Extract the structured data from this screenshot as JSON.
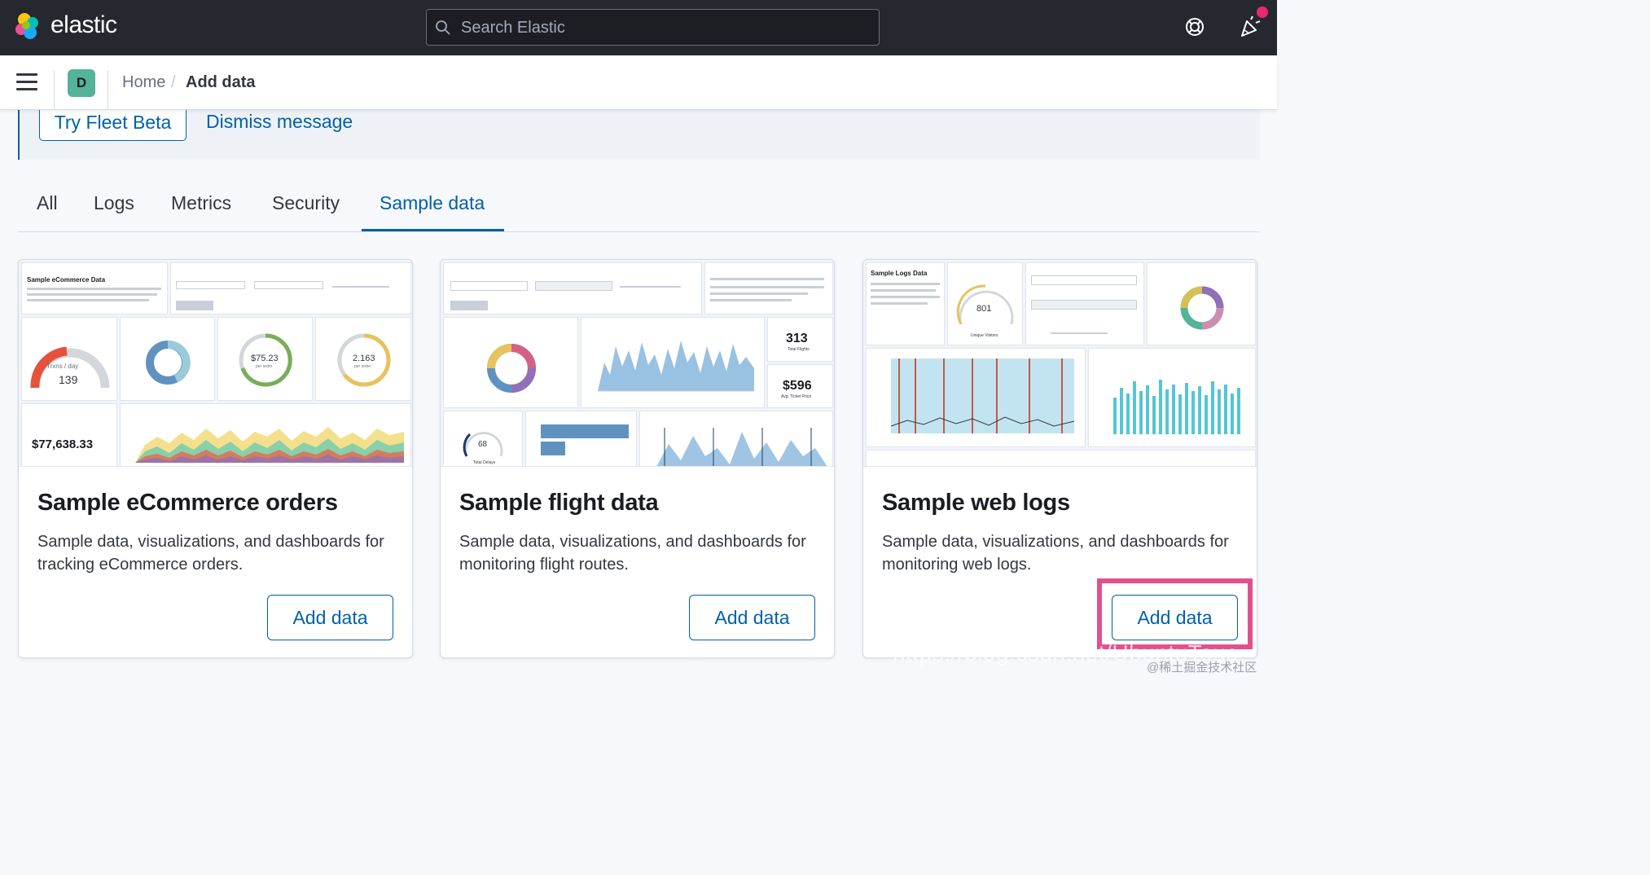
{
  "header": {
    "brand": "elastic",
    "search_placeholder": "Search Elastic",
    "help_icon": "help-icon",
    "news_icon": "newsfeed-icon"
  },
  "breadcrumbs": {
    "space_initial": "D",
    "home": "Home",
    "separator": "/",
    "current": "Add data"
  },
  "callout": {
    "fleet_button": "Try Fleet Beta",
    "dismiss_link": "Dismiss message"
  },
  "tabs": [
    {
      "label": "All",
      "active": false
    },
    {
      "label": "Logs",
      "active": false
    },
    {
      "label": "Metrics",
      "active": false
    },
    {
      "label": "Security",
      "active": false
    },
    {
      "label": "Sample data",
      "active": true
    }
  ],
  "cards": [
    {
      "title": "Sample eCommerce orders",
      "description": "Sample data, visualizations, and dashboards for tracking eCommerce orders.",
      "button": "Add data",
      "thumb": {
        "markdown_title": "Sample eCommerce Data",
        "gauge_label": "Trxns / day",
        "gauge_value": "139",
        "avg_sales": "$75.23",
        "avg_sales_sub": "per order",
        "avg_sold": "2.163",
        "avg_sold_sub": "per order",
        "total_revenue": "$77,638.33"
      }
    },
    {
      "title": "Sample flight data",
      "description": "Sample data, visualizations, and dashboards for monitoring flight routes.",
      "button": "Add data",
      "thumb": {
        "total_flights": "313",
        "total_flights_label": "Total Flights",
        "avg_ticket": "$596",
        "avg_ticket_label": "Avg. Ticket Price",
        "delays": "68",
        "delays_label": "Total Delays"
      }
    },
    {
      "title": "Sample web logs",
      "description": "Sample data, visualizations, and dashboards for monitoring web logs.",
      "button": "Add data",
      "thumb": {
        "markdown_title": "Sample Logs Data",
        "visitors": "801",
        "visitors_label": "Unique Visitors"
      }
    }
  ],
  "watermark": "@稀土掘金技术社区",
  "watermark_url": "https://blog.csdn.net/UbuntuTouc",
  "colors": {
    "header_bg": "#25282f",
    "accent": "#0061a6",
    "highlight": "#e2508e",
    "badge": "#54b399"
  }
}
